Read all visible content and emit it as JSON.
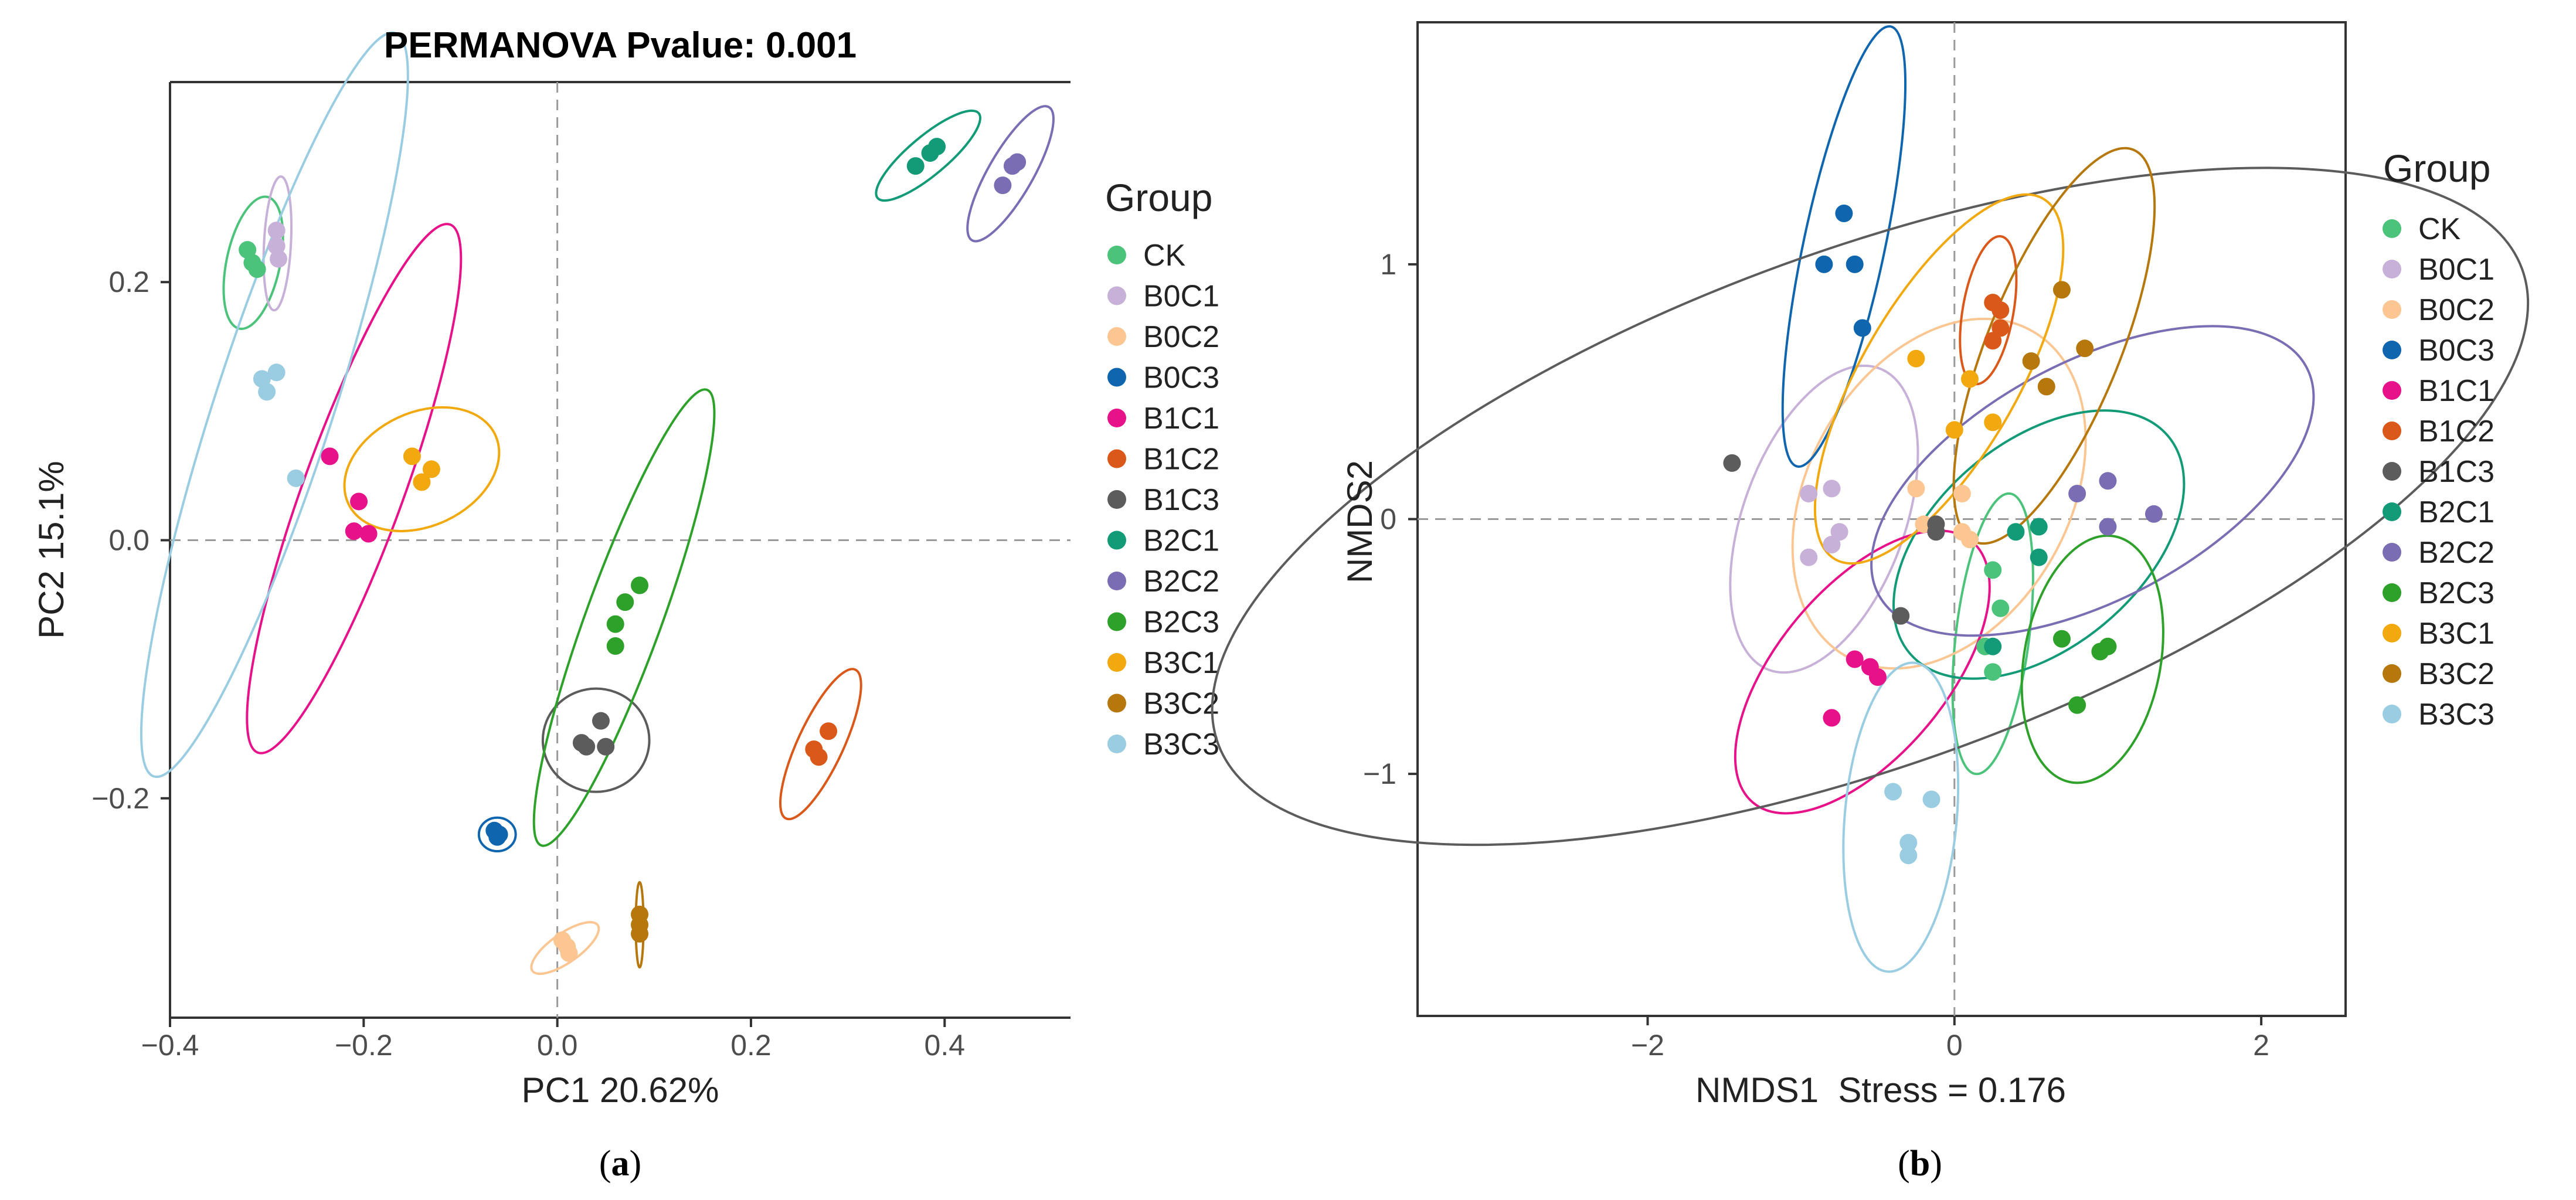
{
  "groups": [
    "CK",
    "B0C1",
    "B0C2",
    "B0C3",
    "B1C1",
    "B1C2",
    "B1C3",
    "B2C1",
    "B2C2",
    "B2C3",
    "B3C1",
    "B3C2",
    "B3C3"
  ],
  "colors": {
    "CK": "#4cc37a",
    "B0C1": "#c7b1d8",
    "B0C2": "#fcc693",
    "B0C3": "#1066ae",
    "B1C1": "#e7128a",
    "B1C2": "#d9581a",
    "B1C3": "#5c5c5c",
    "B2C1": "#139a77",
    "B2C2": "#7b6db4",
    "B2C3": "#2ea12a",
    "B3C1": "#f2a80f",
    "B3C2": "#b6780c",
    "B3C3": "#9acde2"
  },
  "panel_a_label": "a",
  "panel_b_label": "b",
  "chart_data": [
    {
      "type": "scatter",
      "title": "PERMANOVA Pvalue: 0.001",
      "xlabel": "PC1 20.62%",
      "ylabel": "PC2 15.1%",
      "xlim": [
        -0.4,
        0.53
      ],
      "ylim": [
        -0.37,
        0.355
      ],
      "xticks": [
        -0.4,
        -0.2,
        0.0,
        0.2,
        0.4
      ],
      "xtick_labels": [
        "−0.4",
        "−0.2",
        "0.0",
        "0.2",
        "0.4"
      ],
      "yticks": [
        -0.2,
        0.0,
        0.2
      ],
      "ytick_labels": [
        "−0.2",
        "0.0",
        "0.2"
      ],
      "legend_title": "Group",
      "legend_position": "right",
      "grid": false,
      "reference_lines": {
        "x": 0,
        "y": 0
      },
      "series": [
        {
          "name": "CK",
          "points": [
            [
              -0.32,
              0.225
            ],
            [
              -0.315,
              0.215
            ],
            [
              -0.31,
              0.21
            ]
          ],
          "ellipse": {
            "cx": -0.314,
            "cy": 0.215,
            "rx": 0.046,
            "ry": 0.022,
            "angle": -78
          }
        },
        {
          "name": "B0C1",
          "points": [
            [
              -0.29,
              0.24
            ],
            [
              -0.29,
              0.228
            ],
            [
              -0.288,
              0.218
            ]
          ],
          "ellipse": {
            "cx": -0.289,
            "cy": 0.23,
            "rx": 0.05,
            "ry": 0.013,
            "angle": -87
          }
        },
        {
          "name": "B0C2",
          "points": [
            [
              0.005,
              -0.31
            ],
            [
              0.01,
              -0.315
            ],
            [
              0.012,
              -0.32
            ]
          ],
          "ellipse": {
            "cx": 0.008,
            "cy": -0.316,
            "rx": 0.026,
            "ry": 0.009,
            "angle": -35
          }
        },
        {
          "name": "B0C3",
          "points": [
            [
              -0.065,
              -0.225
            ],
            [
              -0.06,
              -0.228
            ],
            [
              -0.062,
              -0.23
            ]
          ],
          "ellipse": {
            "cx": -0.062,
            "cy": -0.228,
            "rx": 0.019,
            "ry": 0.013,
            "angle": 0
          }
        },
        {
          "name": "B1C1",
          "points": [
            [
              -0.235,
              0.065
            ],
            [
              -0.205,
              0.03
            ],
            [
              -0.21,
              0.007
            ],
            [
              -0.195,
              0.005
            ]
          ],
          "ellipse": {
            "cx": -0.21,
            "cy": 0.04,
            "rx": 0.182,
            "ry": 0.037,
            "angle": -70
          }
        },
        {
          "name": "B1C2",
          "points": [
            [
              0.28,
              -0.148
            ],
            [
              0.265,
              -0.162
            ],
            [
              0.27,
              -0.168
            ]
          ],
          "ellipse": {
            "cx": 0.272,
            "cy": -0.158,
            "rx": 0.052,
            "ry": 0.016,
            "angle": -65
          }
        },
        {
          "name": "B1C3",
          "points": [
            [
              0.045,
              -0.14
            ],
            [
              0.025,
              -0.157
            ],
            [
              0.03,
              -0.16
            ],
            [
              0.05,
              -0.16
            ]
          ],
          "ellipse": {
            "cx": 0.04,
            "cy": -0.155,
            "rx": 0.055,
            "ry": 0.04,
            "angle": 0
          }
        },
        {
          "name": "B2C1",
          "points": [
            [
              0.37,
              0.29
            ],
            [
              0.385,
              0.3
            ],
            [
              0.392,
              0.305
            ]
          ],
          "ellipse": {
            "cx": 0.383,
            "cy": 0.298,
            "rx": 0.042,
            "ry": 0.012,
            "angle": -40
          }
        },
        {
          "name": "B2C2",
          "points": [
            [
              0.46,
              0.275
            ],
            [
              0.47,
              0.29
            ],
            [
              0.475,
              0.293
            ]
          ],
          "ellipse": {
            "cx": 0.468,
            "cy": 0.284,
            "rx": 0.048,
            "ry": 0.015,
            "angle": -60
          }
        },
        {
          "name": "B2C3",
          "points": [
            [
              0.085,
              -0.035
            ],
            [
              0.07,
              -0.048
            ],
            [
              0.06,
              -0.065
            ],
            [
              0.06,
              -0.082
            ]
          ],
          "ellipse": {
            "cx": 0.069,
            "cy": -0.06,
            "rx": 0.157,
            "ry": 0.028,
            "angle": -70
          }
        },
        {
          "name": "B3C1",
          "points": [
            [
              -0.15,
              0.065
            ],
            [
              -0.14,
              0.045
            ],
            [
              -0.13,
              0.055
            ]
          ],
          "ellipse": {
            "cx": -0.14,
            "cy": 0.055,
            "rx": 0.057,
            "ry": 0.036,
            "angle": -25
          }
        },
        {
          "name": "B3C2",
          "points": [
            [
              0.085,
              -0.29
            ],
            [
              0.085,
              -0.298
            ],
            [
              0.085,
              -0.305
            ]
          ],
          "ellipse": {
            "cx": 0.085,
            "cy": -0.298,
            "rx": 0.033,
            "ry": 0.004,
            "angle": -90
          }
        },
        {
          "name": "B3C3",
          "points": [
            [
              -0.305,
              0.125
            ],
            [
              -0.3,
              0.115
            ],
            [
              -0.29,
              0.13
            ],
            [
              -0.27,
              0.048
            ]
          ],
          "ellipse": {
            "cx": -0.292,
            "cy": 0.105,
            "rx": 0.256,
            "ry": 0.045,
            "angle": -72
          }
        }
      ]
    },
    {
      "type": "scatter",
      "title": "",
      "xlabel": "NMDS1  Stress = 0.176",
      "ylabel": "NMDS2",
      "xlim": [
        -3.5,
        2.55
      ],
      "ylim": [
        -1.95,
        1.95
      ],
      "xticks": [
        -2,
        0,
        2
      ],
      "xtick_labels": [
        "−2",
        "0",
        "2"
      ],
      "yticks": [
        -1,
        0,
        1
      ],
      "ytick_labels": [
        "−1",
        "0",
        "1"
      ],
      "legend_title": "Group",
      "legend_position": "right",
      "grid": false,
      "reference_lines": {
        "x": 0,
        "y": 0
      },
      "series": [
        {
          "name": "CK",
          "points": [
            [
              0.25,
              -0.2
            ],
            [
              0.3,
              -0.35
            ],
            [
              0.2,
              -0.5
            ],
            [
              0.25,
              -0.6
            ]
          ],
          "ellipse": {
            "cx": 0.25,
            "cy": -0.45,
            "rx": 0.52,
            "ry": 0.2,
            "angle": -83
          }
        },
        {
          "name": "B0C1",
          "points": [
            [
              -0.95,
              0.1
            ],
            [
              -0.8,
              0.12
            ],
            [
              -0.75,
              -0.05
            ],
            [
              -0.8,
              -0.1
            ],
            [
              -0.95,
              -0.15
            ]
          ],
          "ellipse": {
            "cx": -0.85,
            "cy": 0.0,
            "rx": 0.55,
            "ry": 0.35,
            "angle": -70
          }
        },
        {
          "name": "B0C2",
          "points": [
            [
              -0.25,
              0.12
            ],
            [
              0.05,
              0.1
            ],
            [
              -0.2,
              -0.02
            ],
            [
              0.05,
              -0.05
            ],
            [
              0.1,
              -0.08
            ]
          ],
          "ellipse": {
            "cx": -0.1,
            "cy": 0.1,
            "rx": 0.63,
            "ry": 0.5,
            "angle": -60
          }
        },
        {
          "name": "B0C3",
          "points": [
            [
              -0.72,
              1.2
            ],
            [
              -0.65,
              1.0
            ],
            [
              -0.85,
              1.0
            ],
            [
              -0.6,
              0.75
            ]
          ],
          "ellipse": {
            "cx": -0.72,
            "cy": 1.07,
            "rx": 0.8,
            "ry": 0.2,
            "angle": -78
          }
        },
        {
          "name": "B1C1",
          "points": [
            [
              -0.65,
              -0.55
            ],
            [
              -0.55,
              -0.58
            ],
            [
              -0.5,
              -0.62
            ],
            [
              -0.8,
              -0.78
            ]
          ],
          "ellipse": {
            "cx": -0.6,
            "cy": -0.6,
            "rx": 0.58,
            "ry": 0.3,
            "angle": -50
          }
        },
        {
          "name": "B1C2",
          "points": [
            [
              0.25,
              0.85
            ],
            [
              0.3,
              0.82
            ],
            [
              0.25,
              0.7
            ],
            [
              0.3,
              0.75
            ]
          ],
          "ellipse": {
            "cx": 0.22,
            "cy": 0.82,
            "rx": 0.27,
            "ry": 0.13,
            "angle": -80
          }
        },
        {
          "name": "B1C3",
          "points": [
            [
              -1.45,
              0.22
            ],
            [
              -0.35,
              -0.38
            ],
            [
              -0.12,
              -0.05
            ],
            [
              -0.12,
              -0.02
            ]
          ],
          "ellipse": {
            "cx": -0.55,
            "cy": 0.05,
            "rx": 3.0,
            "ry": 0.88,
            "angle": -20
          }
        },
        {
          "name": "B2C1",
          "points": [
            [
              0.4,
              -0.05
            ],
            [
              0.55,
              -0.03
            ],
            [
              0.55,
              -0.15
            ],
            [
              0.25,
              -0.5
            ]
          ],
          "ellipse": {
            "cx": 0.55,
            "cy": -0.1,
            "rx": 0.6,
            "ry": 0.35,
            "angle": -40
          }
        },
        {
          "name": "B2C2",
          "points": [
            [
              0.8,
              0.1
            ],
            [
              1.0,
              0.15
            ],
            [
              1.3,
              0.02
            ],
            [
              1.0,
              -0.03
            ]
          ],
          "ellipse": {
            "cx": 0.9,
            "cy": 0.15,
            "rx": 0.95,
            "ry": 0.4,
            "angle": -28
          }
        },
        {
          "name": "B2C3",
          "points": [
            [
              0.7,
              -0.47
            ],
            [
              0.95,
              -0.52
            ],
            [
              1.0,
              -0.5
            ],
            [
              0.8,
              -0.73
            ]
          ],
          "ellipse": {
            "cx": 0.9,
            "cy": -0.55,
            "rx": 0.45,
            "ry": 0.35,
            "angle": -80
          }
        },
        {
          "name": "B3C1",
          "points": [
            [
              -0.25,
              0.63
            ],
            [
              0.1,
              0.55
            ],
            [
              0.0,
              0.35
            ],
            [
              0.25,
              0.38
            ]
          ],
          "ellipse": {
            "cx": -0.1,
            "cy": 0.55,
            "rx": 0.7,
            "ry": 0.3,
            "angle": -60
          }
        },
        {
          "name": "B3C2",
          "points": [
            [
              0.7,
              0.9
            ],
            [
              0.5,
              0.62
            ],
            [
              0.85,
              0.67
            ],
            [
              0.6,
              0.52
            ]
          ],
          "ellipse": {
            "cx": 0.65,
            "cy": 0.68,
            "rx": 0.72,
            "ry": 0.28,
            "angle": -68
          }
        },
        {
          "name": "B3C3",
          "points": [
            [
              -0.4,
              -1.07
            ],
            [
              -0.15,
              -1.1
            ],
            [
              -0.3,
              -1.27
            ],
            [
              -0.3,
              -1.32
            ]
          ],
          "ellipse": {
            "cx": -0.35,
            "cy": -1.17,
            "rx": 0.58,
            "ry": 0.32,
            "angle": -85
          }
        }
      ]
    }
  ]
}
